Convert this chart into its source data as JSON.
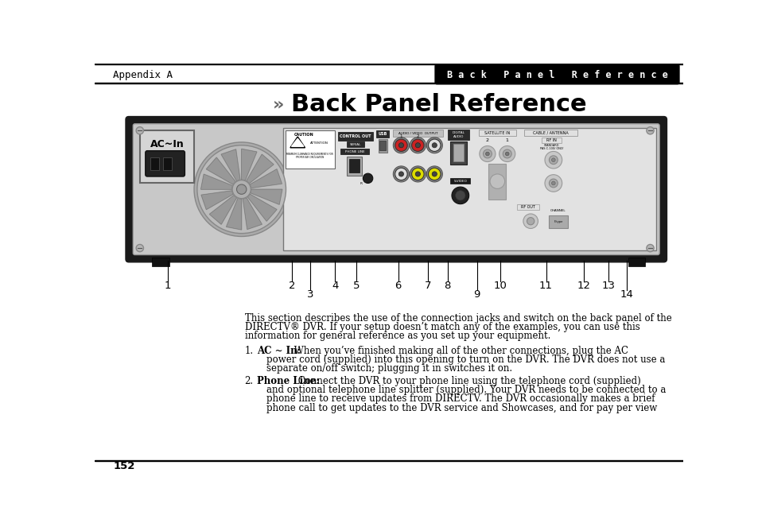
{
  "header_left": "Appendix A",
  "header_right": "Back Panel Reference",
  "title_arrows": "»",
  "title": "Back Panel Reference",
  "page_number": "152",
  "body_text_lines": [
    "This section describes the use of the connection jacks and switch on the back panel of the",
    "DIRECTV® DVR. If your setup doesn’t match any of the examples, you can use this",
    "information for general reference as you set up your equipment."
  ],
  "list_item1_num": "1.",
  "list_item1_bold": "AC ~ In:",
  "list_item1_rest": " When you’ve finished making all of the other connections, plug the AC",
  "list_item1_line2": "power cord (supplied) into this opening to turn on the DVR. The DVR does not use a",
  "list_item1_line3": "separate on/off switch; plugging it in switches it on.",
  "list_item2_num": "2.",
  "list_item2_bold": "Phone Line:",
  "list_item2_rest": " Connect the DVR to your phone line using the telephone cord (supplied)",
  "list_item2_line2": "and optional telephone line splitter (supplied). Your DVR needs to be connected to a",
  "list_item2_line3": "phone line to receive updates from DIRECTV. The DVR occasionally makes a brief",
  "list_item2_line4": "phone call to get updates to the DVR service and Showcases, and for pay per view",
  "bg_color": "#ffffff",
  "header_bg": "#000000",
  "header_text_color": "#ffffff",
  "panel_outer": "#1a1a1a",
  "panel_bg": "#c8c8c8"
}
